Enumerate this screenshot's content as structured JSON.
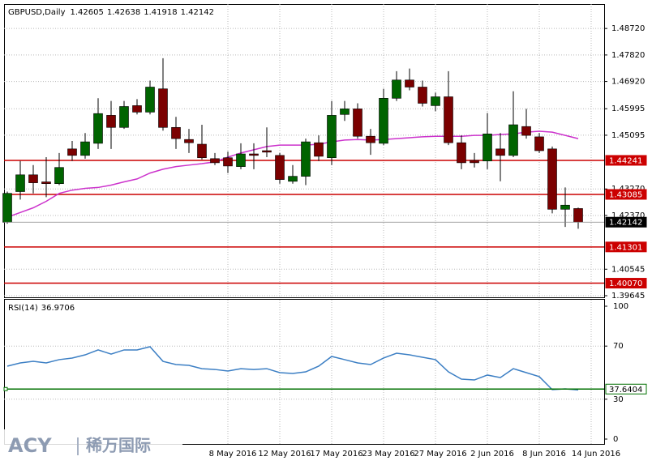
{
  "chart_data": {
    "type": "candlestick",
    "title": "GBPUSD,Daily",
    "categories": [
      null,
      null,
      null,
      null,
      null,
      null,
      null,
      null,
      null,
      null,
      null,
      null,
      null,
      null,
      null,
      null,
      null,
      "8 May 2016",
      null,
      null,
      null,
      "12 May 2016",
      null,
      null,
      null,
      "17 May 2016",
      null,
      null,
      null,
      "23 May 2016",
      null,
      null,
      null,
      "27 May 2016",
      null,
      null,
      null,
      "2 Jun 2016",
      null,
      null,
      null,
      "8 Jun 2016",
      null,
      null,
      null,
      "14 Jun 2016"
    ],
    "open": [
      1.4214,
      1.4318,
      1.4375,
      1.4351,
      1.4345,
      1.4463,
      1.4441,
      1.4482,
      1.4577,
      1.4536,
      1.461,
      1.4588,
      1.4667,
      1.4536,
      1.4495,
      1.4479,
      1.443,
      1.4433,
      1.4403,
      1.4446,
      1.4457,
      1.4441,
      1.4353,
      1.437,
      1.4484,
      1.4433,
      1.458,
      1.4599,
      1.4506,
      1.4482,
      1.4635,
      1.4697,
      1.4673,
      1.461,
      1.464,
      1.4484,
      1.4424,
      1.4422,
      1.4463,
      1.4441,
      1.4539,
      1.4504,
      1.4463,
      1.4258,
      1.42605,
      null
    ],
    "high": [
      1.4318,
      1.4422,
      1.4408,
      1.4435,
      1.4449,
      1.449,
      1.4517,
      1.4635,
      1.4626,
      1.4626,
      1.4632,
      1.4695,
      1.4771,
      1.4572,
      1.4531,
      1.4545,
      1.4449,
      1.4454,
      1.4482,
      1.4482,
      1.4536,
      1.4449,
      1.4408,
      1.4498,
      1.4509,
      1.4626,
      1.4626,
      1.4618,
      1.4531,
      1.4667,
      1.4727,
      1.4736,
      1.4695,
      1.4654,
      1.4727,
      1.4509,
      1.4449,
      1.4585,
      1.4517,
      1.4659,
      1.4599,
      1.4517,
      1.4471,
      1.4332,
      1.42638,
      null
    ],
    "low": [
      1.4209,
      1.4291,
      1.4312,
      1.4299,
      1.434,
      1.4422,
      1.443,
      1.4463,
      1.4463,
      1.4531,
      1.458,
      1.458,
      1.4525,
      1.4463,
      1.4449,
      1.4427,
      1.4408,
      1.4381,
      1.4394,
      1.4394,
      1.4435,
      1.4345,
      1.4345,
      1.434,
      1.4422,
      1.4408,
      1.4558,
      1.4498,
      1.4443,
      1.4476,
      1.4626,
      1.4662,
      1.4607,
      1.4591,
      1.4476,
      1.4394,
      1.44,
      1.4394,
      1.4353,
      1.4435,
      1.4498,
      1.4449,
      1.4244,
      1.4198,
      1.41918,
      null
    ],
    "close": [
      1.4312,
      1.4375,
      1.4348,
      1.4345,
      1.44,
      1.4441,
      1.4487,
      1.4583,
      1.4536,
      1.4607,
      1.4588,
      1.4673,
      1.4536,
      1.4498,
      1.4484,
      1.4433,
      1.4416,
      1.4405,
      1.4446,
      1.4441,
      1.4452,
      1.4359,
      1.437,
      1.4487,
      1.4438,
      1.4577,
      1.4599,
      1.4506,
      1.4484,
      1.4635,
      1.4697,
      1.4673,
      1.4618,
      1.464,
      1.4484,
      1.4416,
      1.4416,
      1.4514,
      1.4441,
      1.4545,
      1.4509,
      1.4457,
      1.4258,
      1.4272,
      1.42142,
      null
    ],
    "up_color": "#006400",
    "down_color": "#7b0000",
    "ma": {
      "color": "#cc33cc",
      "values": [
        1.4231,
        1.4247,
        1.4263,
        1.4285,
        1.4312,
        1.4323,
        1.4329,
        1.4332,
        1.434,
        1.4351,
        1.4361,
        1.4381,
        1.4394,
        1.4403,
        1.4408,
        1.4413,
        1.4419,
        1.4435,
        1.4449,
        1.446,
        1.4471,
        1.4476,
        1.4476,
        1.4476,
        1.4479,
        1.4487,
        1.4493,
        1.4495,
        1.4493,
        1.4495,
        1.4498,
        1.4501,
        1.4504,
        1.4506,
        1.4506,
        1.4506,
        1.4509,
        1.4509,
        1.4512,
        1.4514,
        1.452,
        1.4523,
        1.452,
        1.4509,
        1.4498,
        null
      ]
    },
    "ylim": [
      1.3959,
      1.4955
    ],
    "yticks": [
      {
        "value": 1.4872,
        "label": "1.48720"
      },
      {
        "value": 1.4782,
        "label": "1.47820"
      },
      {
        "value": 1.4692,
        "label": "1.46920"
      },
      1.45995,
      1.45095,
      {
        "value": 1.4327,
        "label": "1.43270"
      },
      {
        "value": 1.4237,
        "label": "1.42370"
      },
      1.40545,
      1.39645
    ],
    "grid": true,
    "levels": [
      {
        "value": 1.44241,
        "color": "#cc0000"
      },
      {
        "value": 1.43085,
        "color": "#cc0000"
      },
      {
        "value": 1.41301,
        "color": "#cc0000"
      },
      {
        "value": {
          "value": 1.4007,
          "label": "1.40070"
        },
        "color": "#cc0000"
      }
    ],
    "last_price_color": "#000000",
    "rsi": {
      "title": "RSI(14)",
      "color": "#3c7fc4",
      "values": [
        54.9,
        57.3,
        58.5,
        57.3,
        59.8,
        61.0,
        63.4,
        67.1,
        64.0,
        67.1,
        67.1,
        69.5,
        58.5,
        56.1,
        55.5,
        53.0,
        52.4,
        51.2,
        53.0,
        52.4,
        53.0,
        50.0,
        49.4,
        50.6,
        54.9,
        62.2,
        59.8,
        57.3,
        56.1,
        61.0,
        64.6,
        63.4,
        61.6,
        59.8,
        50.6,
        45.1,
        44.5,
        48.2,
        46.3,
        53.0,
        50.0,
        47.0,
        37.2,
        37.8,
        36.9706,
        null
      ],
      "ylim": [
        0,
        100
      ],
      "yticks": [
        0,
        30,
        70,
        100
      ],
      "level": 37.6404,
      "level_color": "#007000"
    }
  },
  "logo": {
    "brand": "ACY",
    "name": "稀万国际"
  }
}
